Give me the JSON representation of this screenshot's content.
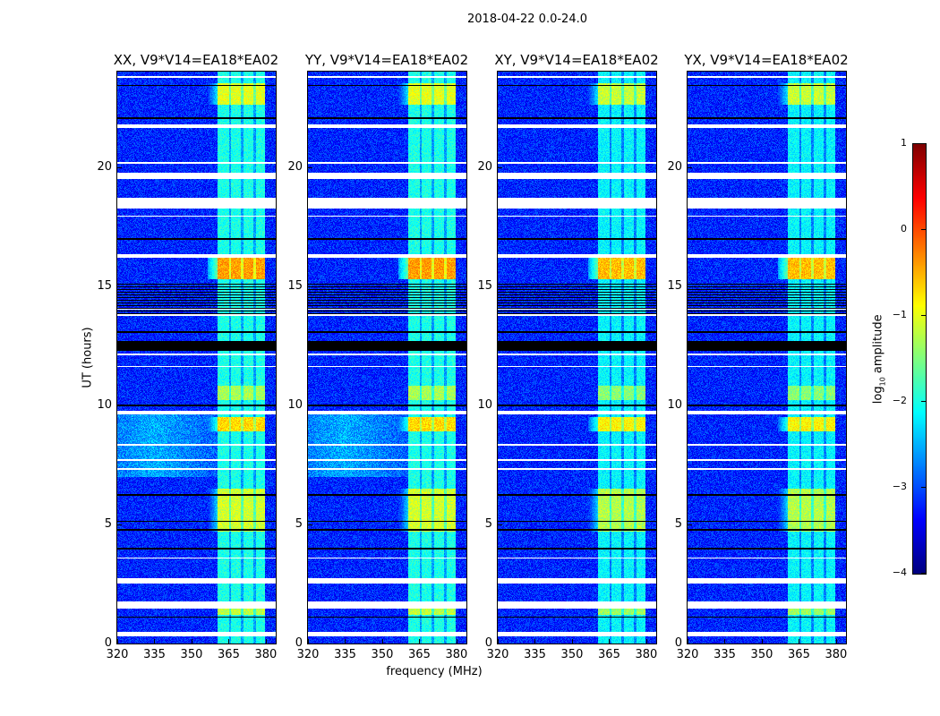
{
  "chart_data": {
    "type": "heatmap",
    "title": "2018-04-22 0.0-24.0",
    "xlabel": "frequency (MHz)",
    "ylabel": "UT (hours)",
    "xlim": [
      320,
      384
    ],
    "ylim": [
      0,
      24
    ],
    "xticks": [
      "320",
      "335",
      "350",
      "365",
      "380"
    ],
    "xtick_values": [
      320,
      335,
      350,
      365,
      380
    ],
    "yticks": [
      "0",
      "5",
      "10",
      "15",
      "20"
    ],
    "ytick_values": [
      0,
      5,
      10,
      15,
      20
    ],
    "panels": [
      {
        "title": "XX, V9*V14=EA18*EA02",
        "diffuse_background": true
      },
      {
        "title": "YY, V9*V14=EA18*EA02",
        "diffuse_background": true
      },
      {
        "title": "XY, V9*V14=EA18*EA02",
        "diffuse_background": false
      },
      {
        "title": "YX, V9*V14=EA18*EA02",
        "diffuse_background": false
      }
    ],
    "colorbar": {
      "label": "log10 amplitude",
      "label_main": "log",
      "label_sub": "10",
      "label_rest": " amplitude",
      "colormap": "jet",
      "range": [
        -4,
        1
      ],
      "ticks": [
        "1",
        "0",
        "−1",
        "−2",
        "−3",
        "−4"
      ],
      "tick_values": [
        1,
        0,
        -1,
        -2,
        -3,
        -4
      ]
    },
    "background_level": -3.2,
    "rfi_band_mhz": [
      360.5,
      379.5
    ],
    "rfi_subband_edges_mhz": [
      360.5,
      365.5,
      370.5,
      375.5,
      379.5
    ],
    "rfi_level_default": -2.0,
    "rfi_bright_intervals_hours": [
      {
        "t": [
          22.6,
          23.5
        ],
        "level": -1.0
      },
      {
        "t": [
          15.3,
          16.2
        ],
        "level": -0.4
      },
      {
        "t": [
          10.2,
          10.8
        ],
        "level": -1.3
      },
      {
        "t": [
          8.9,
          9.5
        ],
        "level": -0.7
      },
      {
        "t": [
          4.7,
          6.5
        ],
        "level": -1.1
      },
      {
        "t": [
          1.2,
          1.45
        ],
        "level": -1.2
      }
    ],
    "diffuse_background_hours": [
      7.0,
      9.6
    ],
    "flagged_white_hours": [
      [
        0.3,
        0.5
      ],
      [
        1.45,
        1.75
      ],
      [
        2.5,
        2.75
      ],
      [
        3.55,
        3.62
      ],
      [
        7.3,
        7.38
      ],
      [
        7.65,
        7.72
      ],
      [
        8.3,
        8.36
      ],
      [
        9.6,
        9.75
      ],
      [
        11.6,
        11.66
      ],
      [
        12.1,
        12.17
      ],
      [
        13.75,
        13.82
      ],
      [
        14.0,
        14.06
      ],
      [
        16.2,
        16.35
      ],
      [
        17.9,
        17.96
      ],
      [
        18.25,
        18.7
      ],
      [
        19.5,
        19.75
      ],
      [
        20.15,
        20.2
      ],
      [
        21.65,
        21.8
      ],
      [
        23.75,
        23.82
      ]
    ],
    "flagged_black_hours": [
      [
        1.08,
        1.13
      ],
      [
        3.95,
        4.0
      ],
      [
        4.72,
        4.8
      ],
      [
        5.1,
        5.15
      ],
      [
        6.2,
        6.27
      ],
      [
        9.95,
        10.02
      ],
      [
        12.3,
        12.7
      ],
      [
        13.05,
        13.12
      ],
      [
        16.95,
        17.02
      ],
      [
        22.0,
        22.07
      ],
      [
        23.4,
        23.45
      ]
    ],
    "striped_black_hours": [
      13.8,
      15.1
    ]
  }
}
